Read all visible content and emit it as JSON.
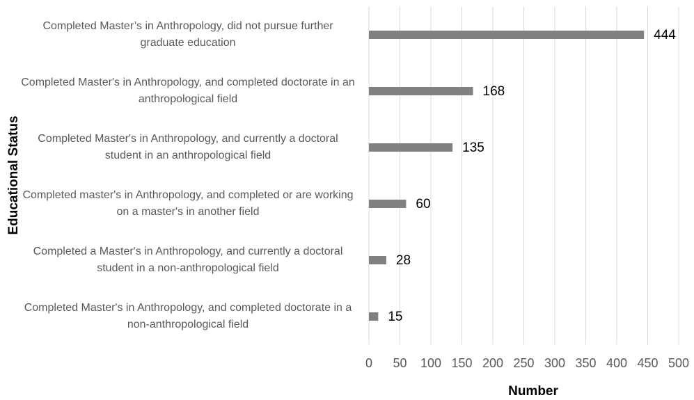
{
  "chart_data": {
    "type": "bar",
    "orientation": "horizontal",
    "x_label": "Number",
    "y_label": "Educational Status",
    "categories": [
      "Completed Master’s in Anthropology, did not pursue further graduate education",
      "Completed Master's in Anthropology, and completed doctorate in an anthropological field",
      "Completed Master's in Anthropology, and currently a doctoral student in an anthropological field",
      "Completed master's in Anthropology, and completed or are working on a master's in another field",
      "Completed a Master's in Anthropology, and currently a doctoral student in a non-anthropological field",
      "Completed Master's in Anthropology, and completed doctorate in a non-anthropological field"
    ],
    "values": [
      444,
      168,
      135,
      60,
      28,
      15
    ],
    "color": "#808080",
    "xlim": [
      0,
      500
    ],
    "xticks": [
      0,
      50,
      100,
      150,
      200,
      250,
      300,
      350,
      400,
      450,
      500
    ],
    "grid": true
  }
}
